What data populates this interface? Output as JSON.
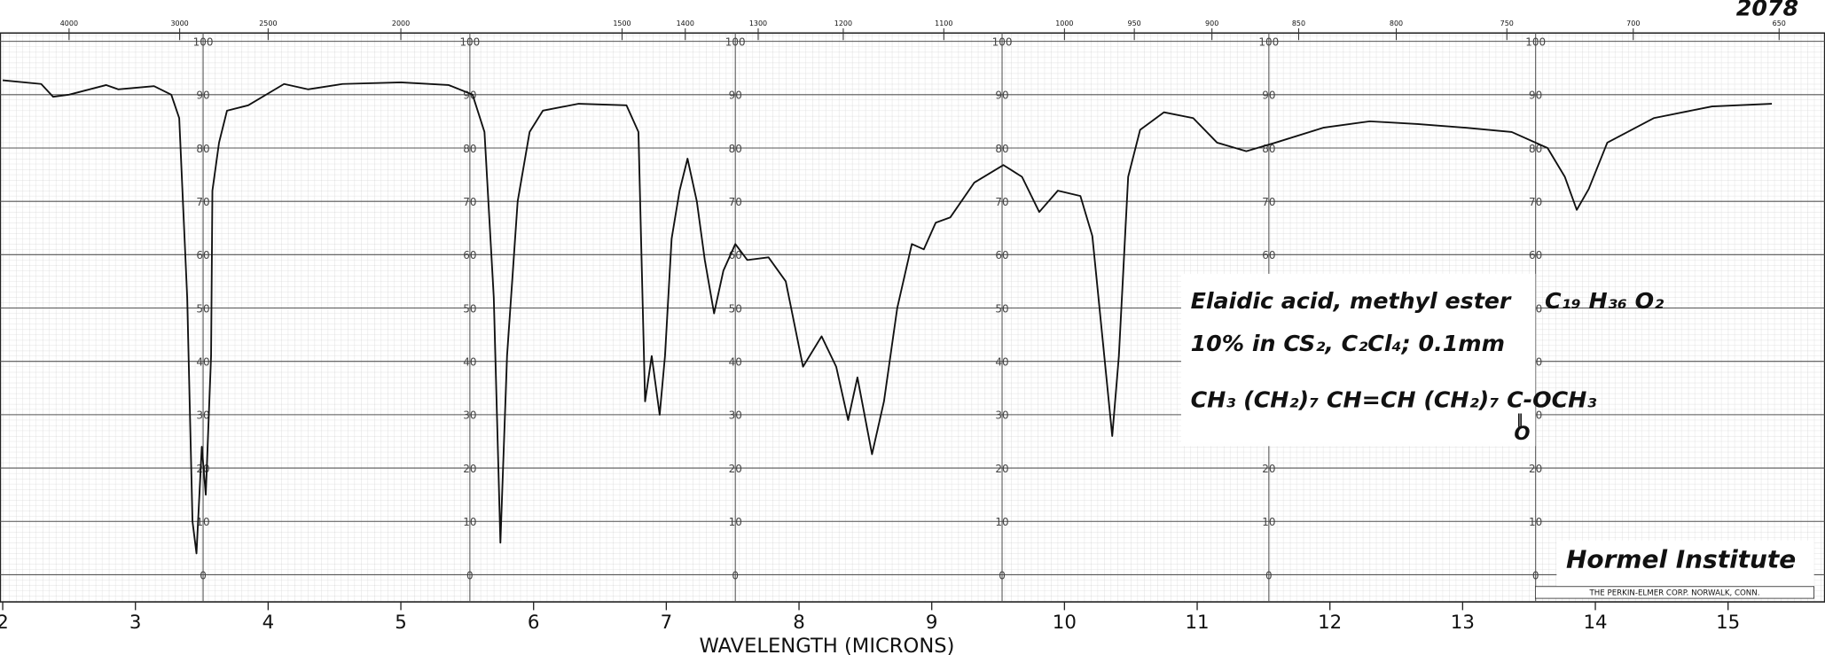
{
  "chart_data": {
    "type": "line",
    "title": "2078",
    "x_label": "WAVELENGTH (MICRONS)",
    "xlim": [
      2,
      15.5
    ],
    "ylim": [
      0,
      100
    ],
    "xticks": [
      2,
      3,
      4,
      5,
      6,
      7,
      8,
      9,
      10,
      11,
      12,
      13,
      14,
      15
    ],
    "yticks": [
      0,
      10,
      20,
      30,
      40,
      50,
      60,
      70,
      80,
      90,
      100
    ],
    "top_ticks": [
      4000,
      3000,
      2500,
      2000,
      1500,
      1400,
      1300,
      1200,
      1100,
      1000,
      950,
      900,
      850,
      800,
      750,
      700,
      650
    ],
    "grid": true,
    "annotations": {
      "compound": "Elaidic acid, methyl ester",
      "formula": "C₁₉ H₃₆ O₂",
      "conditions": "10% in CS₂, C₂Cl₄; 0.1mm",
      "structure": "CH₃ (CH₂)₇ CH=CH (CH₂)₇ C-OCH₃",
      "structure_bond": "‖",
      "structure_oxygen": "O",
      "lab": "Hormel Institute",
      "maker": "THE PERKIN-ELMER CORP. NORWALK, CONN."
    },
    "series": [
      {
        "name": "Elaidic acid, methyl ester",
        "color": "#111111",
        "x": [
          2.0,
          2.29,
          2.38,
          2.5,
          2.78,
          2.87,
          3.14,
          3.27,
          3.33,
          3.39,
          3.43,
          3.46,
          3.5,
          3.53,
          3.57,
          3.58,
          3.63,
          3.69,
          3.85,
          4.12,
          4.3,
          4.56,
          5.0,
          5.36,
          5.54,
          5.63,
          5.7,
          5.75,
          5.8,
          5.88,
          5.97,
          6.07,
          6.34,
          6.7,
          6.79,
          6.84,
          6.89,
          6.95,
          6.99,
          7.04,
          7.1,
          7.16,
          7.23,
          7.29,
          7.36,
          7.43,
          7.52,
          7.61,
          7.77,
          7.9,
          8.03,
          8.17,
          8.28,
          8.37,
          8.44,
          8.55,
          8.64,
          8.74,
          8.85,
          8.94,
          9.03,
          9.14,
          9.32,
          9.54,
          9.68,
          9.81,
          9.95,
          10.12,
          10.21,
          10.3,
          10.36,
          10.41,
          10.48,
          10.57,
          10.75,
          10.97,
          11.15,
          11.37,
          11.59,
          11.95,
          12.3,
          12.66,
          13.02,
          13.37,
          13.64,
          13.77,
          13.86,
          13.95,
          14.09,
          14.44,
          14.88,
          15.33
        ],
        "values": [
          92.7,
          92,
          89.6,
          90,
          91.8,
          91,
          91.6,
          90,
          85.6,
          52,
          10,
          4,
          24,
          15,
          41,
          72,
          81,
          87,
          88,
          92,
          91,
          92,
          92.3,
          91.8,
          90,
          83,
          52,
          6,
          41,
          70,
          83,
          87,
          88.3,
          88,
          83,
          32.5,
          41,
          30,
          41,
          63,
          72,
          78,
          70,
          59,
          49,
          57,
          62,
          59,
          59.5,
          55,
          39,
          44.7,
          39,
          29,
          37,
          22.6,
          32.5,
          50,
          62,
          61,
          66,
          67,
          73.5,
          76.8,
          74.6,
          68,
          72,
          71,
          63.5,
          41,
          26,
          41,
          74.6,
          83.4,
          86.7,
          85.6,
          81,
          79.4,
          81,
          83.8,
          85,
          84.5,
          83.8,
          83,
          80,
          74.6,
          68.4,
          72.3,
          81,
          85.6,
          87.8,
          88.3
        ]
      }
    ]
  }
}
